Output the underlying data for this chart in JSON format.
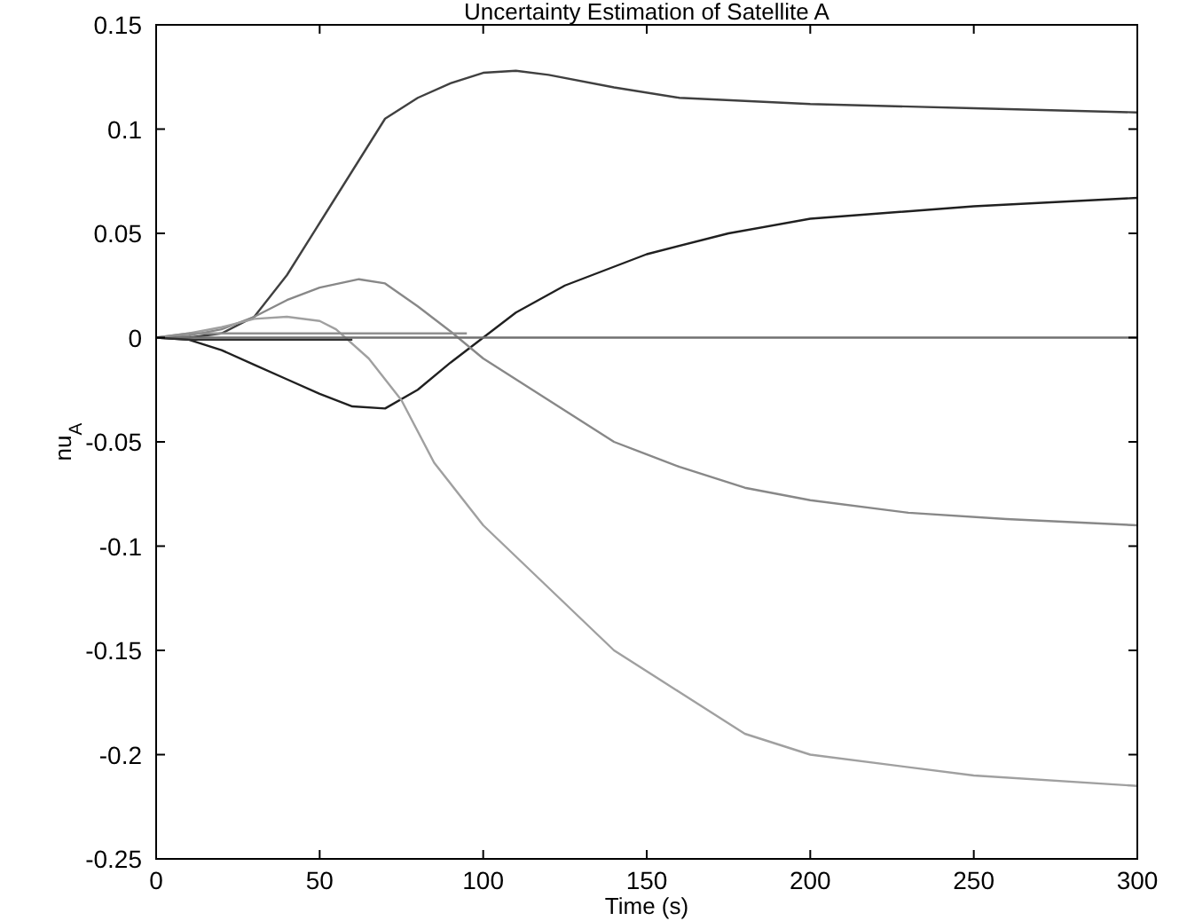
{
  "chart_data": {
    "type": "line",
    "title": "Uncertainty Estimation of Satellite A",
    "xlabel": "Time (s)",
    "ylabel": "nu$_{A}$",
    "xlim": [
      0,
      300
    ],
    "ylim": [
      -0.25,
      0.15
    ],
    "xticks": [
      0,
      50,
      100,
      150,
      200,
      250,
      300
    ],
    "yticks": [
      -0.25,
      -0.2,
      -0.15,
      -0.1,
      -0.05,
      0,
      0.05,
      0.1,
      0.15
    ],
    "grid": false,
    "marker": "none",
    "line_style": "solid",
    "series": [
      {
        "color": "#404040",
        "x": [
          0,
          10,
          20,
          30,
          40,
          50,
          60,
          70,
          80,
          90,
          100,
          110,
          120,
          140,
          160,
          200,
          250,
          300
        ],
        "values": [
          0,
          0,
          0.002,
          0.01,
          0.03,
          0.055,
          0.08,
          0.105,
          0.115,
          0.122,
          0.127,
          0.128,
          0.126,
          0.12,
          0.115,
          0.112,
          0.11,
          0.108
        ]
      },
      {
        "color": "#202020",
        "x": [
          0,
          10,
          20,
          30,
          40,
          50,
          60,
          70,
          80,
          90,
          100,
          110,
          125,
          150,
          175,
          200,
          250,
          300
        ],
        "values": [
          0,
          -0.001,
          -0.006,
          -0.013,
          -0.02,
          -0.027,
          -0.033,
          -0.034,
          -0.025,
          -0.012,
          0,
          0.012,
          0.025,
          0.04,
          0.05,
          0.057,
          0.063,
          0.067
        ]
      },
      {
        "color": "#888888",
        "x": [
          0,
          10,
          20,
          30,
          40,
          50,
          62,
          70,
          80,
          90,
          100,
          120,
          140,
          160,
          180,
          200,
          230,
          260,
          300
        ],
        "values": [
          0,
          0.001,
          0.004,
          0.01,
          0.018,
          0.024,
          0.028,
          0.026,
          0.015,
          0.003,
          -0.01,
          -0.03,
          -0.05,
          -0.062,
          -0.072,
          -0.078,
          -0.084,
          -0.087,
          -0.09
        ]
      },
      {
        "color": "#a0a0a0",
        "x": [
          0,
          10,
          20,
          30,
          40,
          50,
          55,
          65,
          75,
          85,
          100,
          120,
          140,
          160,
          180,
          200,
          250,
          300
        ],
        "values": [
          0,
          0.002,
          0.005,
          0.009,
          0.01,
          0.008,
          0.004,
          -0.01,
          -0.03,
          -0.06,
          -0.09,
          -0.12,
          -0.15,
          -0.17,
          -0.19,
          -0.2,
          -0.21,
          -0.215
        ]
      },
      {
        "color": "#707070",
        "x": [
          0,
          300
        ],
        "values": [
          0,
          0
        ]
      },
      {
        "color": "#909090",
        "x": [
          0,
          10,
          95
        ],
        "values": [
          0,
          0.002,
          0.002
        ]
      },
      {
        "color": "#303030",
        "x": [
          0,
          10,
          60
        ],
        "values": [
          0,
          -0.001,
          -0.001
        ]
      }
    ]
  }
}
